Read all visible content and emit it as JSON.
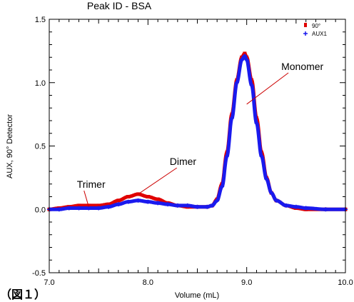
{
  "figure_caption": "（図１）",
  "chart_data": {
    "type": "line",
    "title": "Peak ID - BSA",
    "xlabel": "Volume (mL)",
    "ylabel": "AUX, 90° Detector",
    "xlim": [
      7.0,
      10.0
    ],
    "ylim": [
      -0.5,
      1.5
    ],
    "x_ticks": [
      "7.0",
      "8.0",
      "9.0",
      "10.0"
    ],
    "y_ticks": [
      "1.5",
      "1.0",
      "0.5",
      "0.0",
      "-0.5"
    ],
    "grid": false,
    "legend_position": "top-right",
    "series": [
      {
        "name": "90°",
        "color": "#e00000",
        "marker": "square",
        "points": [
          [
            7.0,
            0.0
          ],
          [
            7.1,
            0.01
          ],
          [
            7.2,
            0.02
          ],
          [
            7.3,
            0.03
          ],
          [
            7.4,
            0.03
          ],
          [
            7.5,
            0.03
          ],
          [
            7.6,
            0.04
          ],
          [
            7.7,
            0.07
          ],
          [
            7.8,
            0.1
          ],
          [
            7.9,
            0.12
          ],
          [
            8.0,
            0.1
          ],
          [
            8.1,
            0.08
          ],
          [
            8.2,
            0.05
          ],
          [
            8.3,
            0.03
          ],
          [
            8.4,
            0.02
          ],
          [
            8.5,
            0.02
          ],
          [
            8.6,
            0.02
          ],
          [
            8.65,
            0.03
          ],
          [
            8.7,
            0.08
          ],
          [
            8.75,
            0.2
          ],
          [
            8.8,
            0.45
          ],
          [
            8.85,
            0.75
          ],
          [
            8.9,
            1.02
          ],
          [
            8.95,
            1.2
          ],
          [
            8.98,
            1.23
          ],
          [
            9.0,
            1.2
          ],
          [
            9.05,
            1.02
          ],
          [
            9.1,
            0.72
          ],
          [
            9.15,
            0.45
          ],
          [
            9.2,
            0.25
          ],
          [
            9.25,
            0.13
          ],
          [
            9.3,
            0.07
          ],
          [
            9.4,
            0.03
          ],
          [
            9.5,
            0.01
          ],
          [
            9.6,
            0.0
          ],
          [
            9.8,
            0.0
          ],
          [
            10.0,
            0.0
          ]
        ]
      },
      {
        "name": "AUX1",
        "color": "#1a1aee",
        "marker": "plus",
        "points": [
          [
            7.0,
            0.0
          ],
          [
            7.1,
            0.0
          ],
          [
            7.2,
            0.01
          ],
          [
            7.3,
            0.01
          ],
          [
            7.4,
            0.01
          ],
          [
            7.5,
            0.01
          ],
          [
            7.6,
            0.02
          ],
          [
            7.7,
            0.04
          ],
          [
            7.8,
            0.06
          ],
          [
            7.9,
            0.07
          ],
          [
            8.0,
            0.06
          ],
          [
            8.1,
            0.05
          ],
          [
            8.2,
            0.04
          ],
          [
            8.3,
            0.03
          ],
          [
            8.4,
            0.03
          ],
          [
            8.5,
            0.02
          ],
          [
            8.6,
            0.02
          ],
          [
            8.65,
            0.03
          ],
          [
            8.7,
            0.07
          ],
          [
            8.75,
            0.18
          ],
          [
            8.8,
            0.42
          ],
          [
            8.85,
            0.72
          ],
          [
            8.9,
            1.0
          ],
          [
            8.95,
            1.18
          ],
          [
            8.98,
            1.21
          ],
          [
            9.0,
            1.18
          ],
          [
            9.05,
            0.98
          ],
          [
            9.1,
            0.68
          ],
          [
            9.15,
            0.42
          ],
          [
            9.2,
            0.24
          ],
          [
            9.25,
            0.13
          ],
          [
            9.3,
            0.07
          ],
          [
            9.4,
            0.03
          ],
          [
            9.5,
            0.02
          ],
          [
            9.6,
            0.01
          ],
          [
            9.8,
            0.0
          ],
          [
            10.0,
            0.0
          ]
        ]
      }
    ],
    "annotations": [
      {
        "text": "Trimer",
        "point": [
          7.4,
          0.02
        ],
        "label_at": [
          7.28,
          0.17
        ]
      },
      {
        "text": "Dimer",
        "point": [
          7.9,
          0.12
        ],
        "label_at": [
          8.22,
          0.35
        ]
      },
      {
        "text": "Monomer",
        "point": [
          9.0,
          0.83
        ],
        "label_at": [
          9.35,
          1.1
        ]
      }
    ]
  }
}
